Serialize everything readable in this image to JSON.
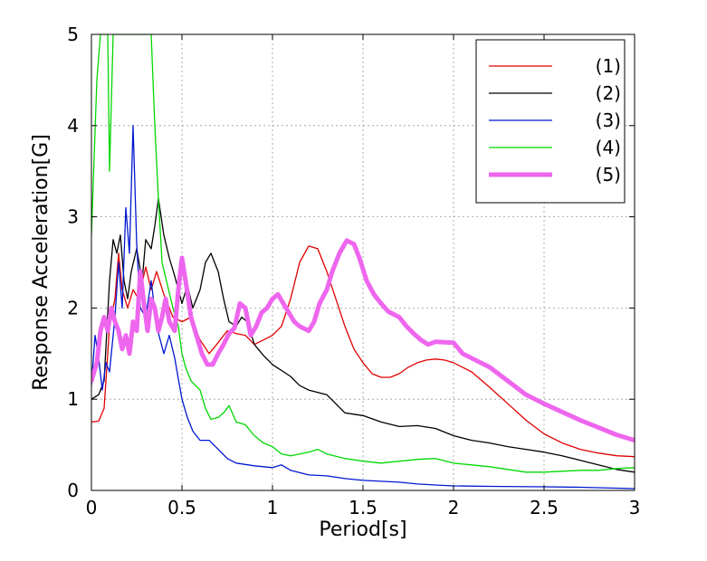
{
  "chart_data": {
    "type": "line",
    "title": "",
    "xlabel": "Period[s]",
    "ylabel": "Response Acceleration[G]",
    "xlim": [
      0,
      3
    ],
    "ylim": [
      0,
      5
    ],
    "xticks": [
      0,
      0.5,
      1,
      1.5,
      2,
      2.5,
      3
    ],
    "xtick_labels": [
      "0",
      "0.5",
      "1",
      "1.5",
      "2",
      "2.5",
      "3"
    ],
    "yticks": [
      0,
      1,
      2,
      3,
      4,
      5
    ],
    "ytick_labels": [
      "0",
      "1",
      "2",
      "3",
      "4",
      "5"
    ],
    "grid": true,
    "legend_position": "top-right",
    "series": [
      {
        "name": "(1)",
        "color": "#e00000",
        "width": 1.3,
        "points": [
          [
            0,
            0.75
          ],
          [
            0.04,
            0.76
          ],
          [
            0.07,
            0.9
          ],
          [
            0.1,
            1.8
          ],
          [
            0.13,
            2.1
          ],
          [
            0.15,
            2.6
          ],
          [
            0.17,
            2.2
          ],
          [
            0.2,
            2.0
          ],
          [
            0.23,
            2.2
          ],
          [
            0.26,
            2.1
          ],
          [
            0.3,
            2.45
          ],
          [
            0.33,
            2.2
          ],
          [
            0.36,
            2.4
          ],
          [
            0.4,
            2.15
          ],
          [
            0.45,
            1.9
          ],
          [
            0.5,
            1.85
          ],
          [
            0.55,
            1.9
          ],
          [
            0.6,
            1.65
          ],
          [
            0.65,
            1.5
          ],
          [
            0.7,
            1.62
          ],
          [
            0.75,
            1.75
          ],
          [
            0.8,
            1.72
          ],
          [
            0.85,
            1.7
          ],
          [
            0.9,
            1.6
          ],
          [
            0.95,
            1.65
          ],
          [
            1.0,
            1.7
          ],
          [
            1.05,
            1.8
          ],
          [
            1.1,
            2.1
          ],
          [
            1.15,
            2.5
          ],
          [
            1.2,
            2.68
          ],
          [
            1.25,
            2.65
          ],
          [
            1.3,
            2.4
          ],
          [
            1.35,
            2.1
          ],
          [
            1.4,
            1.8
          ],
          [
            1.45,
            1.55
          ],
          [
            1.5,
            1.4
          ],
          [
            1.55,
            1.28
          ],
          [
            1.6,
            1.24
          ],
          [
            1.65,
            1.24
          ],
          [
            1.7,
            1.28
          ],
          [
            1.75,
            1.35
          ],
          [
            1.8,
            1.4
          ],
          [
            1.85,
            1.43
          ],
          [
            1.9,
            1.44
          ],
          [
            1.95,
            1.43
          ],
          [
            2.0,
            1.4
          ],
          [
            2.1,
            1.3
          ],
          [
            2.2,
            1.13
          ],
          [
            2.3,
            0.95
          ],
          [
            2.4,
            0.77
          ],
          [
            2.5,
            0.62
          ],
          [
            2.6,
            0.52
          ],
          [
            2.7,
            0.45
          ],
          [
            2.8,
            0.41
          ],
          [
            2.9,
            0.38
          ],
          [
            3.0,
            0.37
          ]
        ]
      },
      {
        "name": "(2)",
        "color": "#000000",
        "width": 1.3,
        "points": [
          [
            0,
            1.0
          ],
          [
            0.04,
            1.05
          ],
          [
            0.07,
            1.2
          ],
          [
            0.1,
            2.3
          ],
          [
            0.12,
            2.75
          ],
          [
            0.14,
            2.6
          ],
          [
            0.16,
            2.8
          ],
          [
            0.18,
            2.3
          ],
          [
            0.2,
            2.1
          ],
          [
            0.22,
            2.4
          ],
          [
            0.25,
            2.65
          ],
          [
            0.28,
            2.3
          ],
          [
            0.3,
            2.75
          ],
          [
            0.33,
            2.65
          ],
          [
            0.35,
            2.9
          ],
          [
            0.37,
            3.2
          ],
          [
            0.4,
            2.8
          ],
          [
            0.43,
            2.55
          ],
          [
            0.46,
            2.35
          ],
          [
            0.5,
            2.05
          ],
          [
            0.53,
            2.25
          ],
          [
            0.56,
            2.0
          ],
          [
            0.6,
            2.2
          ],
          [
            0.63,
            2.5
          ],
          [
            0.66,
            2.6
          ],
          [
            0.7,
            2.4
          ],
          [
            0.73,
            2.1
          ],
          [
            0.76,
            1.85
          ],
          [
            0.8,
            1.8
          ],
          [
            0.83,
            1.9
          ],
          [
            0.86,
            1.85
          ],
          [
            0.9,
            1.6
          ],
          [
            0.95,
            1.48
          ],
          [
            1.0,
            1.38
          ],
          [
            1.1,
            1.25
          ],
          [
            1.15,
            1.15
          ],
          [
            1.2,
            1.1
          ],
          [
            1.3,
            1.05
          ],
          [
            1.35,
            0.95
          ],
          [
            1.4,
            0.85
          ],
          [
            1.5,
            0.82
          ],
          [
            1.6,
            0.75
          ],
          [
            1.7,
            0.7
          ],
          [
            1.8,
            0.71
          ],
          [
            1.9,
            0.68
          ],
          [
            2.0,
            0.6
          ],
          [
            2.1,
            0.55
          ],
          [
            2.2,
            0.52
          ],
          [
            2.3,
            0.48
          ],
          [
            2.4,
            0.45
          ],
          [
            2.5,
            0.42
          ],
          [
            2.6,
            0.38
          ],
          [
            2.7,
            0.33
          ],
          [
            2.8,
            0.28
          ],
          [
            2.9,
            0.23
          ],
          [
            3.0,
            0.2
          ]
        ]
      },
      {
        "name": "(3)",
        "color": "#0018d0",
        "width": 1.3,
        "points": [
          [
            0,
            1.15
          ],
          [
            0.02,
            1.7
          ],
          [
            0.04,
            1.45
          ],
          [
            0.06,
            1.1
          ],
          [
            0.08,
            1.4
          ],
          [
            0.1,
            1.3
          ],
          [
            0.13,
            1.9
          ],
          [
            0.15,
            2.5
          ],
          [
            0.17,
            2.0
          ],
          [
            0.19,
            3.1
          ],
          [
            0.21,
            2.6
          ],
          [
            0.23,
            4.0
          ],
          [
            0.25,
            2.7
          ],
          [
            0.27,
            2.0
          ],
          [
            0.3,
            1.9
          ],
          [
            0.33,
            2.3
          ],
          [
            0.36,
            1.8
          ],
          [
            0.4,
            1.5
          ],
          [
            0.43,
            1.7
          ],
          [
            0.46,
            1.45
          ],
          [
            0.5,
            1.0
          ],
          [
            0.53,
            0.8
          ],
          [
            0.56,
            0.65
          ],
          [
            0.6,
            0.55
          ],
          [
            0.65,
            0.55
          ],
          [
            0.7,
            0.45
          ],
          [
            0.75,
            0.35
          ],
          [
            0.8,
            0.3
          ],
          [
            0.9,
            0.27
          ],
          [
            1.0,
            0.25
          ],
          [
            1.05,
            0.28
          ],
          [
            1.1,
            0.22
          ],
          [
            1.2,
            0.17
          ],
          [
            1.3,
            0.16
          ],
          [
            1.4,
            0.13
          ],
          [
            1.5,
            0.11
          ],
          [
            1.6,
            0.1
          ],
          [
            1.7,
            0.09
          ],
          [
            1.8,
            0.07
          ],
          [
            1.9,
            0.06
          ],
          [
            2.0,
            0.05
          ],
          [
            2.2,
            0.045
          ],
          [
            2.5,
            0.04
          ],
          [
            2.7,
            0.035
          ],
          [
            3.0,
            0.02
          ]
        ]
      },
      {
        "name": "(4)",
        "color": "#00d800",
        "width": 1.3,
        "points": [
          [
            0,
            2.8
          ],
          [
            0.03,
            4.5
          ],
          [
            0.05,
            5.0
          ],
          [
            0.07,
            5.0
          ],
          [
            0.09,
            5.0
          ],
          [
            0.1,
            3.5
          ],
          [
            0.12,
            5.0
          ],
          [
            0.14,
            5.0
          ],
          [
            0.33,
            5.0
          ],
          [
            0.35,
            4.0
          ],
          [
            0.37,
            3.2
          ],
          [
            0.39,
            2.5
          ],
          [
            0.42,
            2.25
          ],
          [
            0.45,
            2.0
          ],
          [
            0.48,
            1.8
          ],
          [
            0.5,
            1.5
          ],
          [
            0.52,
            1.35
          ],
          [
            0.55,
            1.2
          ],
          [
            0.6,
            1.1
          ],
          [
            0.63,
            0.9
          ],
          [
            0.66,
            0.78
          ],
          [
            0.7,
            0.8
          ],
          [
            0.73,
            0.85
          ],
          [
            0.76,
            0.93
          ],
          [
            0.8,
            0.75
          ],
          [
            0.85,
            0.72
          ],
          [
            0.9,
            0.6
          ],
          [
            0.95,
            0.52
          ],
          [
            1.0,
            0.48
          ],
          [
            1.05,
            0.4
          ],
          [
            1.1,
            0.38
          ],
          [
            1.2,
            0.42
          ],
          [
            1.25,
            0.45
          ],
          [
            1.3,
            0.4
          ],
          [
            1.4,
            0.35
          ],
          [
            1.5,
            0.32
          ],
          [
            1.6,
            0.3
          ],
          [
            1.7,
            0.32
          ],
          [
            1.8,
            0.34
          ],
          [
            1.9,
            0.35
          ],
          [
            2.0,
            0.3
          ],
          [
            2.1,
            0.28
          ],
          [
            2.2,
            0.26
          ],
          [
            2.3,
            0.23
          ],
          [
            2.4,
            0.2
          ],
          [
            2.5,
            0.2
          ],
          [
            2.6,
            0.21
          ],
          [
            2.7,
            0.22
          ],
          [
            2.8,
            0.22
          ],
          [
            2.9,
            0.24
          ],
          [
            3.0,
            0.25
          ]
        ]
      },
      {
        "name": "(5)",
        "color": "#ee66ee",
        "width": 5,
        "points": [
          [
            0,
            1.2
          ],
          [
            0.03,
            1.4
          ],
          [
            0.05,
            1.75
          ],
          [
            0.07,
            1.9
          ],
          [
            0.09,
            1.75
          ],
          [
            0.11,
            2.0
          ],
          [
            0.13,
            1.85
          ],
          [
            0.15,
            1.75
          ],
          [
            0.17,
            1.55
          ],
          [
            0.19,
            1.7
          ],
          [
            0.21,
            1.5
          ],
          [
            0.23,
            1.85
          ],
          [
            0.25,
            1.75
          ],
          [
            0.27,
            2.4
          ],
          [
            0.29,
            2.05
          ],
          [
            0.31,
            1.75
          ],
          [
            0.33,
            2.1
          ],
          [
            0.35,
            2.0
          ],
          [
            0.37,
            1.75
          ],
          [
            0.39,
            1.9
          ],
          [
            0.41,
            2.1
          ],
          [
            0.43,
            1.85
          ],
          [
            0.46,
            1.75
          ],
          [
            0.48,
            2.2
          ],
          [
            0.5,
            2.55
          ],
          [
            0.52,
            2.3
          ],
          [
            0.55,
            1.9
          ],
          [
            0.58,
            1.7
          ],
          [
            0.61,
            1.5
          ],
          [
            0.64,
            1.38
          ],
          [
            0.67,
            1.38
          ],
          [
            0.7,
            1.5
          ],
          [
            0.73,
            1.6
          ],
          [
            0.76,
            1.72
          ],
          [
            0.79,
            1.78
          ],
          [
            0.82,
            2.05
          ],
          [
            0.85,
            2.0
          ],
          [
            0.88,
            1.7
          ],
          [
            0.91,
            1.8
          ],
          [
            0.94,
            1.95
          ],
          [
            0.97,
            2.0
          ],
          [
            1.0,
            2.1
          ],
          [
            1.03,
            2.15
          ],
          [
            1.06,
            2.05
          ],
          [
            1.09,
            1.95
          ],
          [
            1.12,
            1.85
          ],
          [
            1.15,
            1.8
          ],
          [
            1.2,
            1.75
          ],
          [
            1.23,
            1.85
          ],
          [
            1.26,
            2.05
          ],
          [
            1.3,
            2.2
          ],
          [
            1.33,
            2.4
          ],
          [
            1.37,
            2.6
          ],
          [
            1.41,
            2.74
          ],
          [
            1.45,
            2.7
          ],
          [
            1.48,
            2.55
          ],
          [
            1.52,
            2.3
          ],
          [
            1.56,
            2.15
          ],
          [
            1.6,
            2.05
          ],
          [
            1.64,
            1.96
          ],
          [
            1.7,
            1.9
          ],
          [
            1.74,
            1.8
          ],
          [
            1.78,
            1.72
          ],
          [
            1.82,
            1.65
          ],
          [
            1.86,
            1.6
          ],
          [
            1.9,
            1.63
          ],
          [
            2.0,
            1.62
          ],
          [
            2.05,
            1.5
          ],
          [
            2.1,
            1.45
          ],
          [
            2.2,
            1.35
          ],
          [
            2.3,
            1.2
          ],
          [
            2.4,
            1.05
          ],
          [
            2.5,
            0.95
          ],
          [
            2.6,
            0.86
          ],
          [
            2.7,
            0.77
          ],
          [
            2.8,
            0.69
          ],
          [
            2.9,
            0.61
          ],
          [
            3.0,
            0.55
          ]
        ]
      }
    ]
  }
}
